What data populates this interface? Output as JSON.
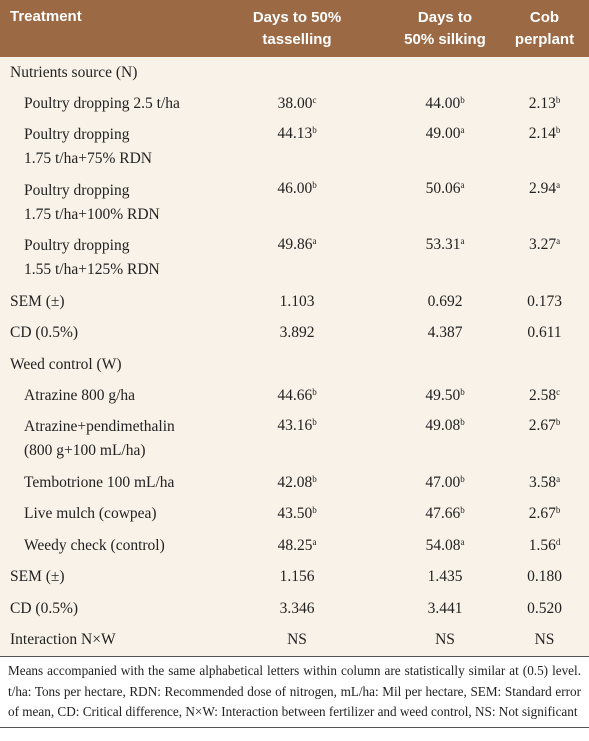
{
  "table": {
    "header": [
      [
        "Treatment"
      ],
      [
        "Days to 50%",
        "tasselling"
      ],
      [
        "Days to",
        "50% silking"
      ],
      [
        "Cob",
        "perplant"
      ]
    ],
    "groups": [
      {
        "title": "Nutrients source (N)",
        "rows": [
          {
            "label": [
              "Poultry dropping 2.5 t/ha"
            ],
            "values": [
              {
                "value": "38.00",
                "sup": "c"
              },
              {
                "value": "44.00",
                "sup": "b"
              },
              {
                "value": "2.13",
                "sup": "b"
              }
            ]
          },
          {
            "label": [
              "Poultry dropping",
              "1.75 t/ha+75% RDN"
            ],
            "values": [
              {
                "value": "44.13",
                "sup": "b"
              },
              {
                "value": "49.00",
                "sup": "a"
              },
              {
                "value": "2.14",
                "sup": "b"
              }
            ]
          },
          {
            "label": [
              "Poultry dropping",
              "1.75 t/ha+100% RDN"
            ],
            "values": [
              {
                "value": "46.00",
                "sup": "b"
              },
              {
                "value": "50.06",
                "sup": "a"
              },
              {
                "value": "2.94",
                "sup": "a"
              }
            ]
          },
          {
            "label": [
              "Poultry dropping",
              "1.55 t/ha+125% RDN"
            ],
            "values": [
              {
                "value": "49.86",
                "sup": "a"
              },
              {
                "value": "53.31",
                "sup": "a"
              },
              {
                "value": "3.27",
                "sup": "a"
              }
            ]
          }
        ],
        "stats": [
          {
            "label": "SEM (±)",
            "values": [
              "1.103",
              "0.692",
              "0.173"
            ]
          },
          {
            "label": "CD (0.5%)",
            "values": [
              "3.892",
              "4.387",
              "0.611"
            ]
          }
        ]
      },
      {
        "title": "Weed control (W)",
        "rows": [
          {
            "label": [
              "Atrazine 800 g/ha"
            ],
            "values": [
              {
                "value": "44.66",
                "sup": "b"
              },
              {
                "value": "49.50",
                "sup": "b"
              },
              {
                "value": "2.58",
                "sup": "c"
              }
            ]
          },
          {
            "label": [
              "Atrazine+pendimethalin",
              "(800 g+100 mL/ha)"
            ],
            "values": [
              {
                "value": "43.16",
                "sup": "b"
              },
              {
                "value": "49.08",
                "sup": "b"
              },
              {
                "value": "2.67",
                "sup": "b"
              }
            ]
          },
          {
            "label": [
              "Tembotrione 100 mL/ha"
            ],
            "values": [
              {
                "value": "42.08",
                "sup": "b"
              },
              {
                "value": "47.00",
                "sup": "b"
              },
              {
                "value": "3.58",
                "sup": "a"
              }
            ]
          },
          {
            "label": [
              "Live mulch (cowpea)"
            ],
            "values": [
              {
                "value": "43.50",
                "sup": "b"
              },
              {
                "value": "47.66",
                "sup": "b"
              },
              {
                "value": "2.67",
                "sup": "b"
              }
            ]
          },
          {
            "label": [
              "Weedy check (control)"
            ],
            "values": [
              {
                "value": "48.25",
                "sup": "a"
              },
              {
                "value": "54.08",
                "sup": "a"
              },
              {
                "value": "1.56",
                "sup": "d"
              }
            ]
          }
        ],
        "stats": [
          {
            "label": "SEM (±)",
            "values": [
              "1.156",
              "1.435",
              "0.180"
            ]
          },
          {
            "label": "CD (0.5%)",
            "values": [
              "3.346",
              "3.441",
              "0.520"
            ]
          }
        ]
      }
    ],
    "interaction": {
      "label": "Interaction N×W",
      "values": [
        "NS",
        "NS",
        "NS"
      ]
    },
    "footnote": "Means accompanied with the same alphabetical letters within column are statistically similar at (0.5) level. t/ha: Tons per hectare, RDN: Recommended dose of nitrogen, mL/ha: Mil per hectare, SEM: Standard error of mean, CD: Critical difference, N×W: Interaction between fertilizer and weed control, NS: Not significant"
  }
}
